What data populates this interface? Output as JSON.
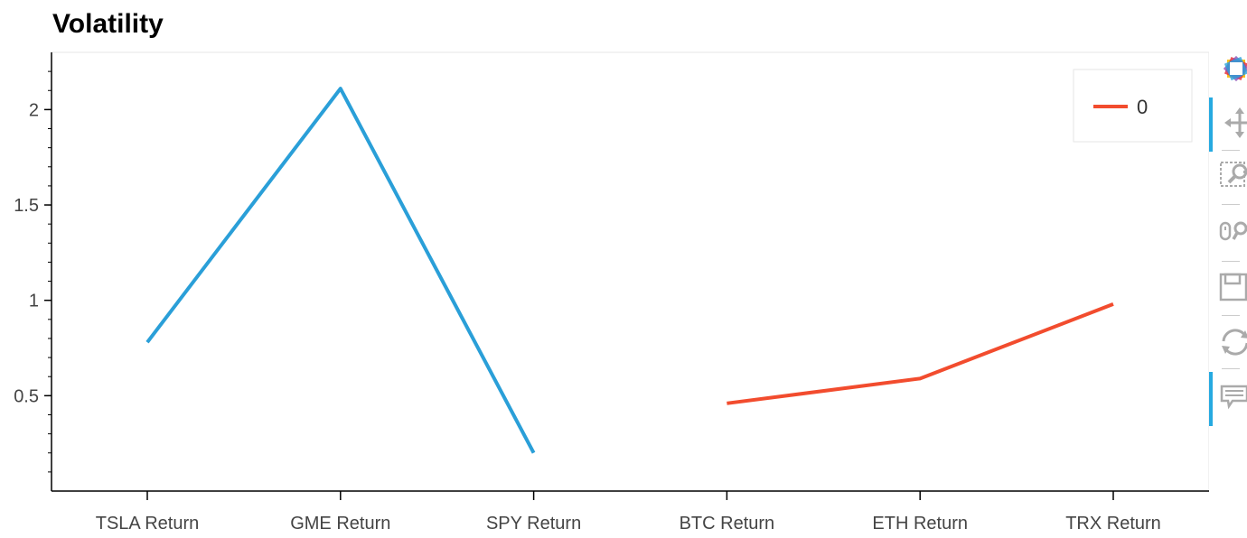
{
  "chart_data": {
    "type": "line",
    "title": "Volatility",
    "categories": [
      "TSLA Return",
      "GME Return",
      "SPY Return",
      "BTC Return",
      "ETH Return",
      "TRX Return"
    ],
    "series": [
      {
        "name": "",
        "color": "#2a9fd8",
        "points": [
          [
            "TSLA Return",
            0.78
          ],
          [
            "GME Return",
            2.11
          ],
          [
            "SPY Return",
            0.2
          ]
        ]
      },
      {
        "name": "0",
        "color": "#f24c2e",
        "points": [
          [
            "BTC Return",
            0.46
          ],
          [
            "ETH Return",
            0.59
          ],
          [
            "TRX Return",
            0.98
          ]
        ]
      }
    ],
    "ylim": [
      0.0,
      2.3
    ],
    "yticks": [
      0.5,
      1,
      1.5,
      2
    ],
    "ytick_labels": [
      "0.5",
      "1",
      "1.5",
      "2"
    ],
    "legend": {
      "entries": [
        "0"
      ],
      "placement": "top-right"
    },
    "grid": false
  },
  "toolbar": {
    "tools": [
      "bokeh-logo-icon",
      "pan-icon",
      "box-zoom-icon",
      "wheel-zoom-icon",
      "save-icon",
      "reset-icon",
      "hover-icon"
    ]
  }
}
